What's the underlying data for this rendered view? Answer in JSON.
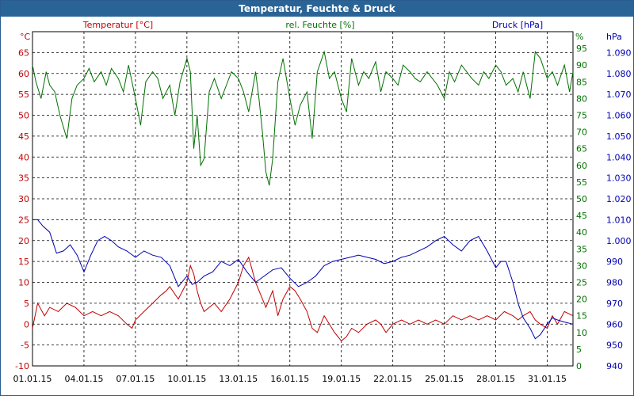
{
  "window": {
    "title": "Temperatur, Feuchte & Druck"
  },
  "chart_data": {
    "type": "line",
    "title": "Temperatur, Feuchte & Druck",
    "grid": true,
    "colors": {
      "temperature": "#c00000",
      "humidity": "#007000",
      "pressure": "#0000b0"
    },
    "x_ticks": [
      "01.01.15",
      "04.01.15",
      "07.01.15",
      "10.01.15",
      "13.01.15",
      "16.01.15",
      "19.01.15",
      "22.01.15",
      "25.01.15",
      "28.01.15",
      "31.01.15"
    ],
    "x_range_days": [
      1,
      32.5
    ],
    "axes": {
      "temperature": {
        "label": "Temperatur [°C]",
        "unit": "°C",
        "ylim": [
          -10,
          70
        ],
        "ticks": [
          "-10",
          "-5",
          "0",
          "5",
          "10",
          "15",
          "20",
          "25",
          "30",
          "35",
          "40",
          "45",
          "50",
          "55",
          "60",
          "65"
        ],
        "tick_values": [
          -10,
          -5,
          0,
          5,
          10,
          15,
          20,
          25,
          30,
          35,
          40,
          45,
          50,
          55,
          60,
          65
        ]
      },
      "humidity": {
        "label": "rel. Feuchte [%]",
        "unit": "%",
        "ylim": [
          0,
          100
        ],
        "ticks": [
          "0",
          "5",
          "10",
          "15",
          "20",
          "25",
          "30",
          "35",
          "40",
          "45",
          "50",
          "55",
          "60",
          "65",
          "70",
          "75",
          "80",
          "85",
          "90",
          "95"
        ],
        "tick_values": [
          0,
          5,
          10,
          15,
          20,
          25,
          30,
          35,
          40,
          45,
          50,
          55,
          60,
          65,
          70,
          75,
          80,
          85,
          90,
          95
        ]
      },
      "pressure": {
        "label": "Druck [hPa]",
        "unit": "hPa",
        "ylim": [
          940,
          1100
        ],
        "ticks": [
          "940",
          "950",
          "960",
          "970",
          "980",
          "990",
          "1.000",
          "1.010",
          "1.020",
          "1.030",
          "1.040",
          "1.050",
          "1.060",
          "1.070",
          "1.080",
          "1.090"
        ],
        "tick_values": [
          940,
          950,
          960,
          970,
          980,
          990,
          1000,
          1010,
          1020,
          1030,
          1040,
          1050,
          1060,
          1070,
          1080,
          1090
        ]
      }
    },
    "series": [
      {
        "name": "Temperatur [°C]",
        "axis": "temperature",
        "x": [
          1,
          1.3,
          1.7,
          2,
          2.5,
          3,
          3.5,
          4,
          4.5,
          5,
          5.5,
          6,
          6.5,
          6.8,
          7,
          7.5,
          8,
          8.5,
          8.8,
          9,
          9.5,
          10,
          10.2,
          10.4,
          10.6,
          10.8,
          11,
          11.3,
          11.6,
          12,
          12.5,
          13,
          13.3,
          13.6,
          14,
          14.3,
          14.6,
          15,
          15.3,
          15.6,
          16,
          16.3,
          16.6,
          17,
          17.3,
          17.6,
          18,
          18.3,
          18.6,
          19,
          19.3,
          19.6,
          20,
          20.5,
          21,
          21.3,
          21.6,
          22,
          22.5,
          23,
          23.5,
          24,
          24.5,
          25,
          25.5,
          26,
          26.5,
          27,
          27.5,
          28,
          28.5,
          29,
          29.3,
          29.6,
          30,
          30.3,
          30.6,
          31,
          31.3,
          31.6,
          32,
          32.5
        ],
        "y": [
          -1,
          5,
          2,
          4,
          3,
          5,
          4,
          2,
          3,
          2,
          3,
          2,
          0,
          -1,
          1,
          3,
          5,
          7,
          8,
          9,
          6,
          10,
          14,
          12,
          8,
          5,
          3,
          4,
          5,
          3,
          6,
          10,
          14,
          16,
          10,
          7,
          4,
          8,
          2,
          6,
          9,
          8,
          6,
          3,
          -1,
          -2,
          2,
          0,
          -2,
          -4,
          -3,
          -1,
          -2,
          0,
          1,
          0,
          -2,
          0,
          1,
          0,
          1,
          0,
          1,
          0,
          2,
          1,
          2,
          1,
          2,
          1,
          3,
          2,
          1,
          2,
          3,
          1,
          0,
          -1,
          2,
          0,
          3,
          2
        ]
      },
      {
        "name": "rel. Feuchte [%]",
        "axis": "humidity",
        "x": [
          1,
          1.2,
          1.5,
          1.8,
          2,
          2.3,
          2.6,
          3,
          3.3,
          3.6,
          4,
          4.3,
          4.6,
          5,
          5.3,
          5.6,
          6,
          6.3,
          6.6,
          7,
          7.3,
          7.6,
          8,
          8.3,
          8.6,
          9,
          9.3,
          9.6,
          10,
          10.2,
          10.4,
          10.6,
          10.8,
          11,
          11.3,
          11.6,
          12,
          12.3,
          12.6,
          13,
          13.3,
          13.6,
          14,
          14.2,
          14.4,
          14.6,
          14.8,
          15,
          15.3,
          15.6,
          16,
          16.3,
          16.6,
          17,
          17.3,
          17.6,
          18,
          18.3,
          18.6,
          19,
          19.3,
          19.6,
          20,
          20.3,
          20.6,
          21,
          21.3,
          21.6,
          22,
          22.3,
          22.6,
          23,
          23.3,
          23.6,
          24,
          24.3,
          24.6,
          25,
          25.3,
          25.6,
          26,
          26.3,
          26.6,
          27,
          27.3,
          27.6,
          28,
          28.3,
          28.6,
          29,
          29.3,
          29.6,
          30,
          30.3,
          30.6,
          31,
          31.3,
          31.6,
          32,
          32.3,
          32.5
        ],
        "y": [
          90,
          85,
          80,
          88,
          84,
          82,
          75,
          68,
          80,
          84,
          86,
          89,
          85,
          88,
          84,
          89,
          86,
          82,
          90,
          80,
          72,
          85,
          88,
          86,
          80,
          84,
          75,
          85,
          92,
          88,
          65,
          75,
          60,
          62,
          82,
          86,
          80,
          84,
          88,
          86,
          82,
          76,
          88,
          80,
          70,
          58,
          54,
          62,
          85,
          92,
          80,
          72,
          78,
          82,
          68,
          88,
          94,
          86,
          88,
          80,
          76,
          92,
          84,
          88,
          86,
          91,
          82,
          88,
          86,
          84,
          90,
          88,
          86,
          85,
          88,
          86,
          84,
          80,
          88,
          85,
          90,
          88,
          86,
          84,
          88,
          86,
          90,
          88,
          84,
          86,
          82,
          88,
          80,
          94,
          92,
          86,
          88,
          84,
          90,
          82,
          88
        ]
      },
      {
        "name": "Druck [hPa]",
        "axis": "pressure",
        "x": [
          1,
          1.3,
          1.6,
          2,
          2.4,
          2.8,
          3.2,
          3.6,
          4,
          4.4,
          4.8,
          5.2,
          5.6,
          6,
          6.5,
          7,
          7.5,
          8,
          8.5,
          9,
          9.5,
          10,
          10.3,
          10.6,
          11,
          11.5,
          12,
          12.5,
          13,
          13.5,
          14,
          14.5,
          15,
          15.5,
          16,
          16.5,
          17,
          17.5,
          18,
          18.5,
          19,
          19.5,
          20,
          20.5,
          21,
          21.5,
          22,
          22.5,
          23,
          23.5,
          24,
          24.5,
          25,
          25.5,
          26,
          26.5,
          27,
          27.5,
          28,
          28.3,
          28.6,
          29,
          29.3,
          29.6,
          30,
          30.3,
          30.6,
          31,
          31.3,
          31.6,
          32,
          32.5
        ],
        "y": [
          1010,
          1010,
          1007,
          1004,
          994,
          995,
          998,
          993,
          985,
          993,
          1000,
          1002,
          1000,
          997,
          995,
          992,
          995,
          993,
          992,
          988,
          978,
          983,
          979,
          980,
          983,
          985,
          990,
          988,
          991,
          985,
          980,
          983,
          986,
          987,
          982,
          978,
          980,
          983,
          988,
          990,
          991,
          992,
          993,
          992,
          991,
          989,
          990,
          992,
          993,
          995,
          997,
          1000,
          1002,
          998,
          995,
          1000,
          1002,
          995,
          987,
          990,
          990,
          980,
          970,
          963,
          958,
          953,
          955,
          960,
          963,
          962,
          961,
          960
        ]
      }
    ]
  }
}
